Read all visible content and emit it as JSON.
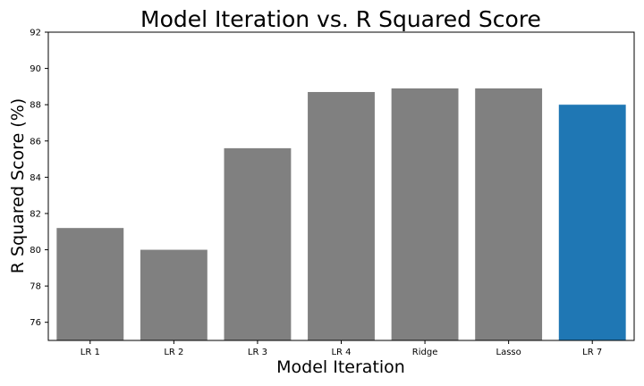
{
  "chart_data": {
    "type": "bar",
    "title": "Model Iteration vs. R Squared Score",
    "xlabel": "Model Iteration",
    "ylabel": "R Squared Score (%)",
    "categories": [
      "LR 1",
      "LR 2",
      "LR 3",
      "LR 4",
      "Ridge",
      "Lasso",
      "LR 7"
    ],
    "values": [
      81.2,
      80.0,
      85.6,
      88.7,
      88.9,
      88.9,
      88.0
    ],
    "ylim": [
      75,
      92
    ],
    "yticks": [
      76,
      78,
      80,
      82,
      84,
      86,
      88,
      90,
      92
    ],
    "grid": false,
    "legend": "none",
    "colors": {
      "default": "#808080",
      "highlight": "#1f77b4"
    },
    "highlight_index": 6
  }
}
